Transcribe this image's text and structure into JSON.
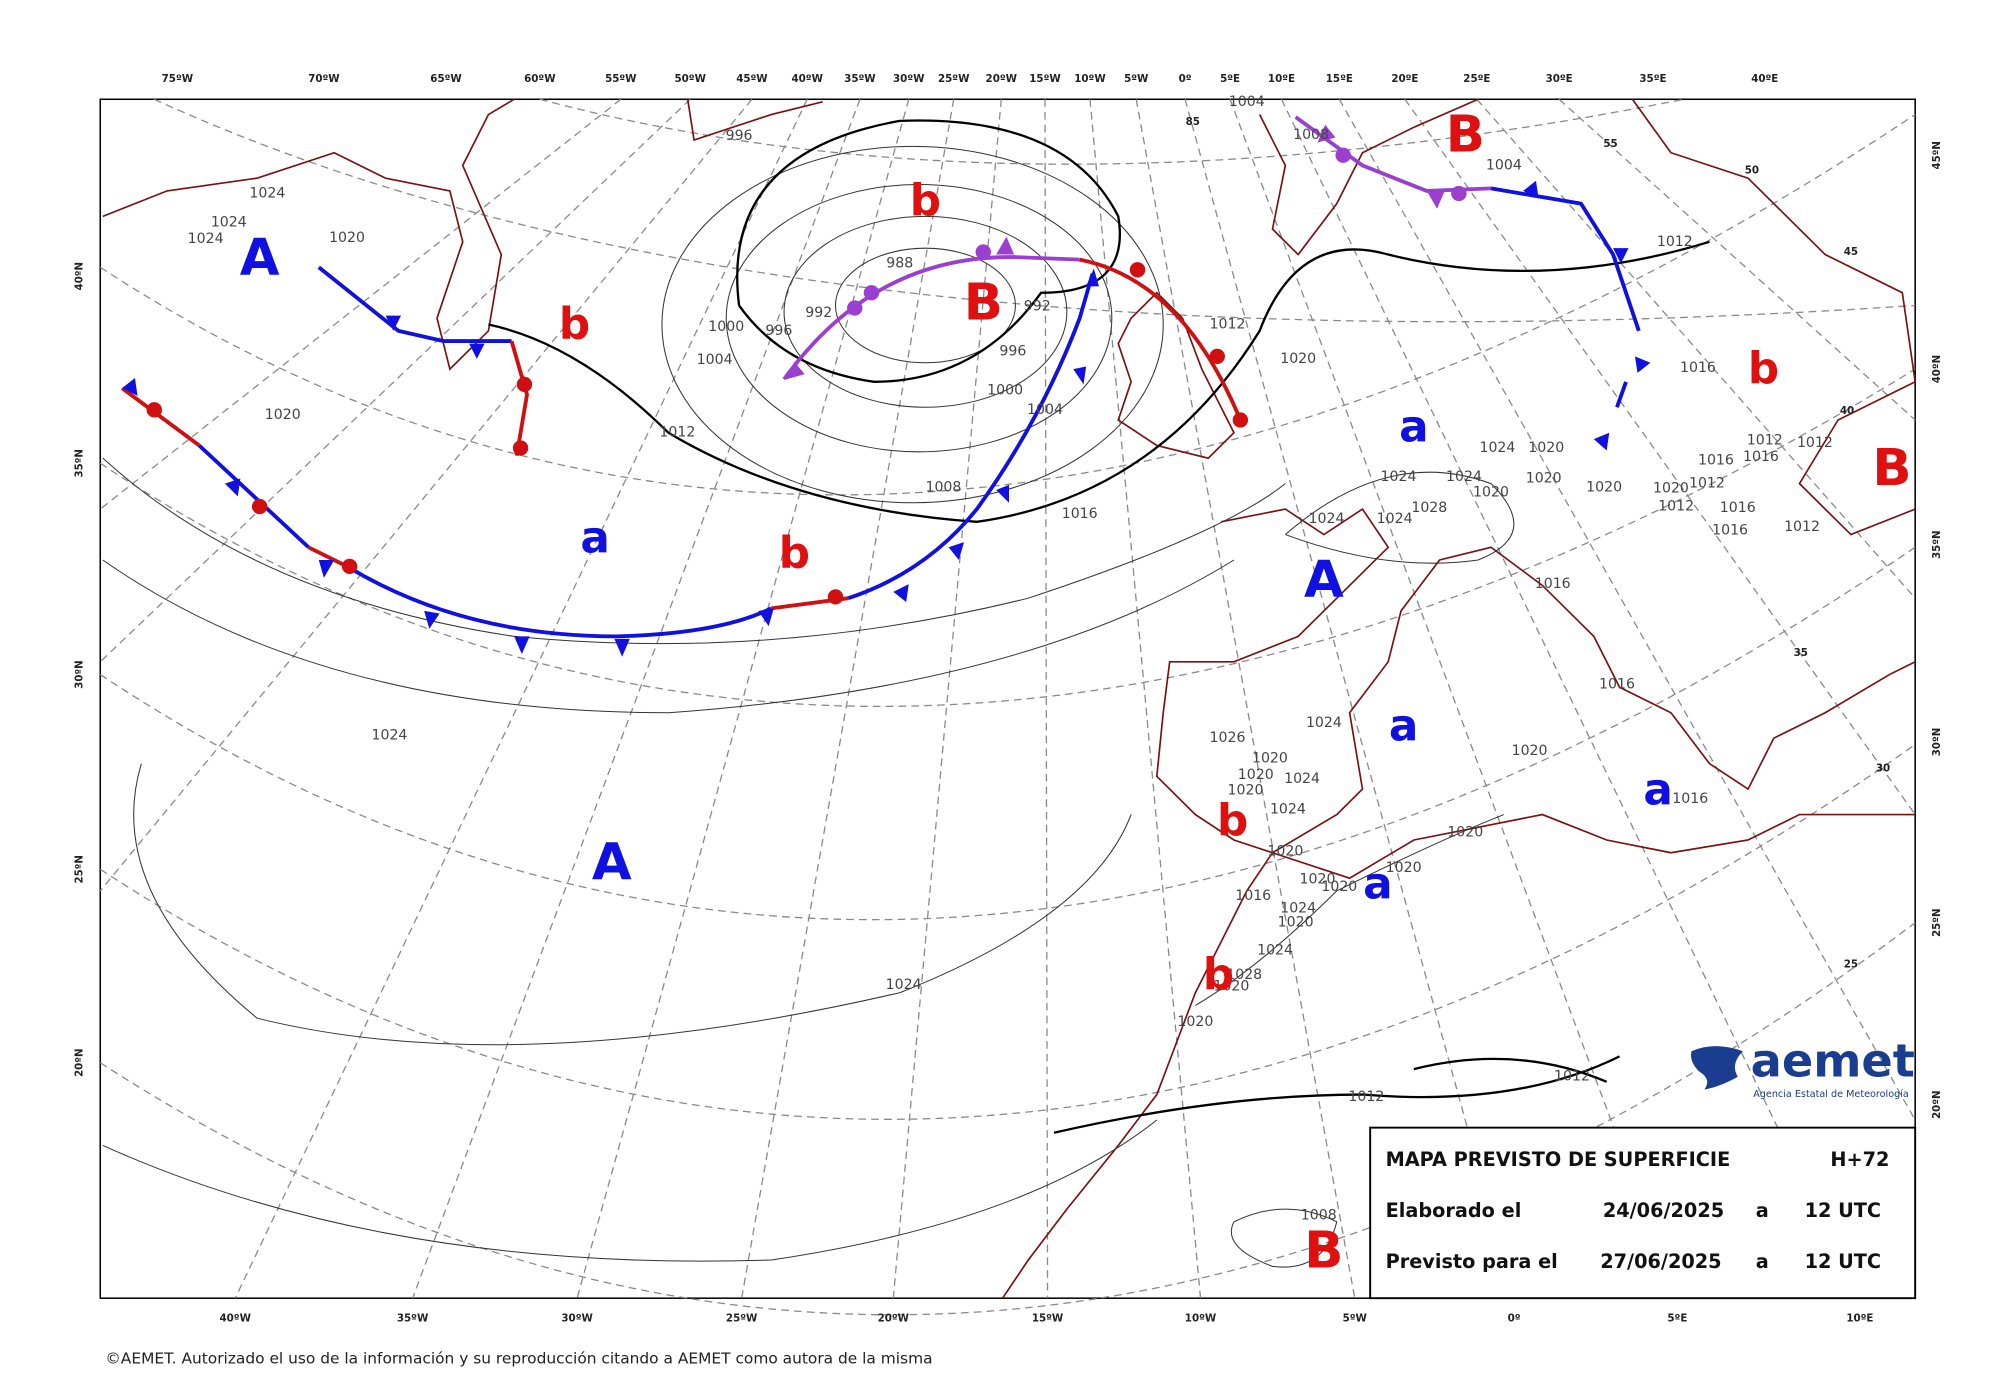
{
  "lon_labels_top": [
    "75ºW",
    "70ºW",
    "65ºW",
    "60ºW",
    "55ºW",
    "50ºW",
    "45ºW",
    "40ºW",
    "35ºW",
    "30ºW",
    "25ºW",
    "20ºW",
    "15ºW",
    "10ºW",
    "5ºW",
    "0º",
    "5ºE",
    "10ºE",
    "15ºE",
    "20ºE",
    "25ºE",
    "30ºE",
    "35ºE",
    "40ºE"
  ],
  "lon_labels_bottom": [
    "40ºW",
    "35ºW",
    "30ºW",
    "25ºW",
    "20ºW",
    "15ºW",
    "10ºW",
    "5ºW",
    "0º",
    "5ºE",
    "10ºE"
  ],
  "lat_labels_left": [
    "40ºN",
    "35ºN",
    "30ºN",
    "25ºN",
    "20ºN"
  ],
  "lat_labels_right": [
    "45ºN",
    "40ºN",
    "35ºN",
    "30ºN",
    "25ºN",
    "20ºN"
  ],
  "grid_labels": [
    "85",
    "55",
    "50",
    "45",
    "40",
    "35",
    "30",
    "25"
  ],
  "pressure_centers": [
    "A",
    "A",
    "A",
    "B",
    "B",
    "B",
    "B",
    "a",
    "a",
    "a",
    "a",
    "a",
    "b",
    "b",
    "b",
    "b",
    "b",
    "b"
  ],
  "isobar_labels": [
    "1004",
    "996",
    "1024",
    "1024",
    "1024",
    "1020",
    "988",
    "992",
    "992",
    "1000",
    "996",
    "1004",
    "996",
    "1012",
    "1020",
    "1000",
    "1004",
    "1020",
    "1012",
    "1008",
    "1016",
    "1024",
    "1020",
    "1024",
    "1024",
    "1020",
    "1028",
    "1024",
    "1024",
    "1020",
    "1020",
    "1012",
    "1020",
    "1016",
    "1012",
    "1016",
    "1012",
    "1016",
    "1012",
    "1012",
    "1016",
    "1016",
    "1012",
    "1004",
    "1008",
    "1016",
    "1016",
    "1024",
    "1026",
    "1024",
    "1020",
    "1020",
    "1024",
    "1020",
    "1024",
    "1020",
    "1016",
    "1020",
    "1020",
    "1020",
    "1020",
    "1020",
    "1016",
    "1024",
    "1020",
    "1024",
    "1028",
    "1020",
    "1024",
    "1020",
    "1012",
    "1012",
    "1008"
  ],
  "legend_box": {
    "title": "MAPA PREVISTO DE SUPERFICIE",
    "range": "H+72",
    "rows": [
      [
        "Elaborado el",
        "24/06/2025",
        "a",
        "12 UTC"
      ],
      [
        "Previsto para el",
        "27/06/2025",
        "a",
        "12 UTC"
      ]
    ]
  },
  "logo": {
    "name": "aemet",
    "subtitle": "Agencia Estatal de Meteorología"
  },
  "footer": "©AEMET. Autorizado el uso de la información y su reproducción citando a AEMET como autora de la misma"
}
